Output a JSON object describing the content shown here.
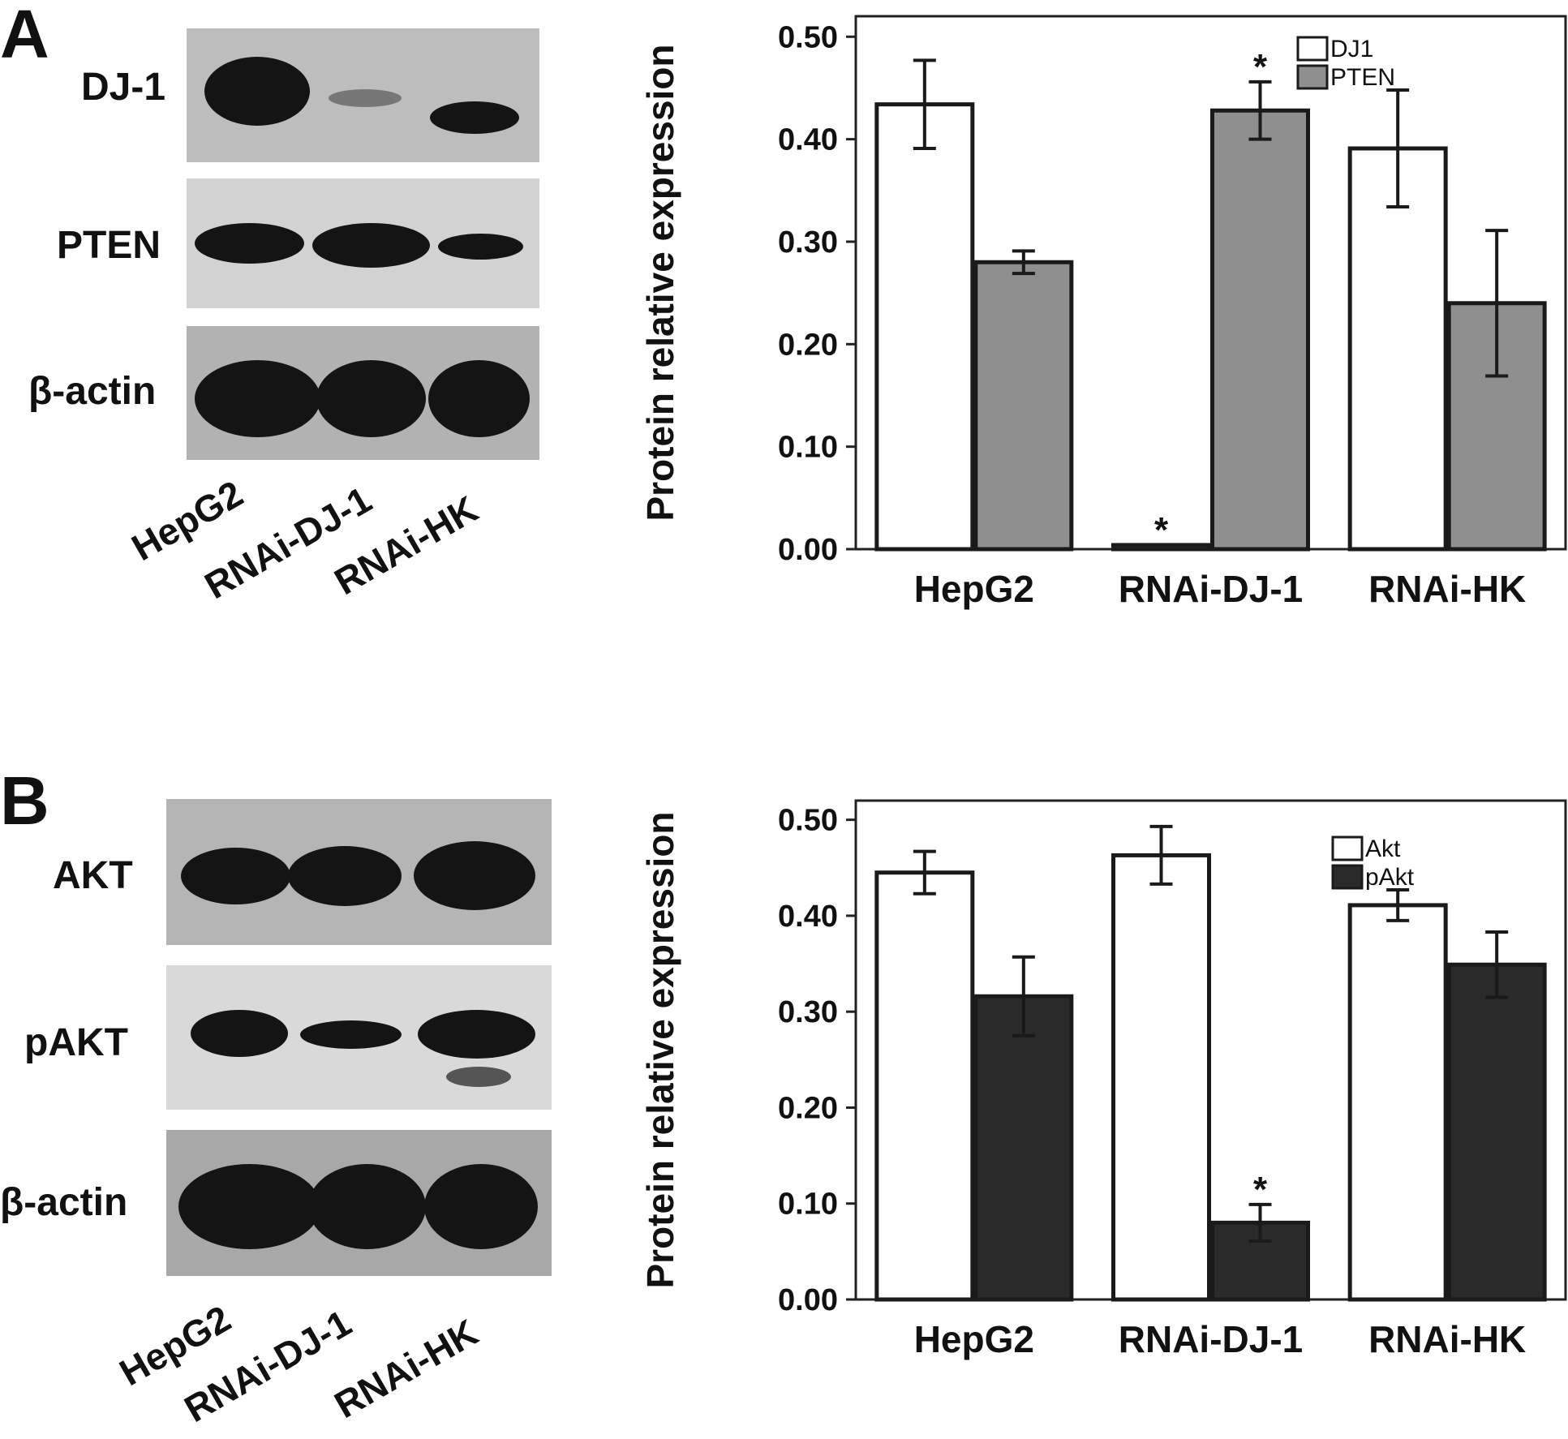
{
  "panels": [
    {
      "letter": "A",
      "blot": {
        "rows": [
          "DJ-1",
          "PTEN",
          "β-actin"
        ],
        "lanes": [
          "HepG2",
          "RNAi-DJ-1",
          "RNAi-HK"
        ]
      }
    },
    {
      "letter": "B",
      "blot": {
        "rows": [
          "AKT",
          "pAKT",
          "β-actin"
        ],
        "lanes": [
          "HepG2",
          "RNAi-DJ-1",
          "RNAi-HK"
        ]
      }
    }
  ],
  "chart_data": [
    {
      "type": "bar",
      "title": "",
      "xlabel": "",
      "ylabel": "Protein relative expression",
      "ylim": [
        0,
        0.52
      ],
      "yticks": [
        "0.00",
        "0.10",
        "0.20",
        "0.30",
        "0.40",
        "0.50"
      ],
      "categories": [
        "HepG2",
        "RNAi-DJ-1",
        "RNAi-HK"
      ],
      "legend_position": "top-right",
      "grid": false,
      "series": [
        {
          "name": "DJ1",
          "color": "#ffffff",
          "values": [
            0.434,
            0.004,
            0.391
          ],
          "errors": [
            0.043,
            0.0,
            0.057
          ],
          "significance": [
            "",
            "*",
            ""
          ]
        },
        {
          "name": "PTEN",
          "color": "#8f8f8f",
          "values": [
            0.28,
            0.428,
            0.24
          ],
          "errors": [
            0.011,
            0.028,
            0.071
          ],
          "significance": [
            "",
            "*",
            ""
          ]
        }
      ]
    },
    {
      "type": "bar",
      "title": "",
      "xlabel": "",
      "ylabel": "Protein relative expression",
      "ylim": [
        0,
        0.52
      ],
      "yticks": [
        "0.00",
        "0.10",
        "0.20",
        "0.30",
        "0.40",
        "0.50"
      ],
      "categories": [
        "HepG2",
        "RNAi-DJ-1",
        "RNAi-HK"
      ],
      "legend_position": "top-right",
      "grid": false,
      "series": [
        {
          "name": "Akt",
          "color": "#ffffff",
          "values": [
            0.445,
            0.463,
            0.411
          ],
          "errors": [
            0.022,
            0.03,
            0.016
          ],
          "significance": [
            "",
            "",
            ""
          ]
        },
        {
          "name": "pAkt",
          "color": "#2a2a2a",
          "values": [
            0.316,
            0.08,
            0.349
          ],
          "errors": [
            0.041,
            0.019,
            0.034
          ],
          "significance": [
            "",
            "*",
            ""
          ]
        }
      ]
    }
  ]
}
